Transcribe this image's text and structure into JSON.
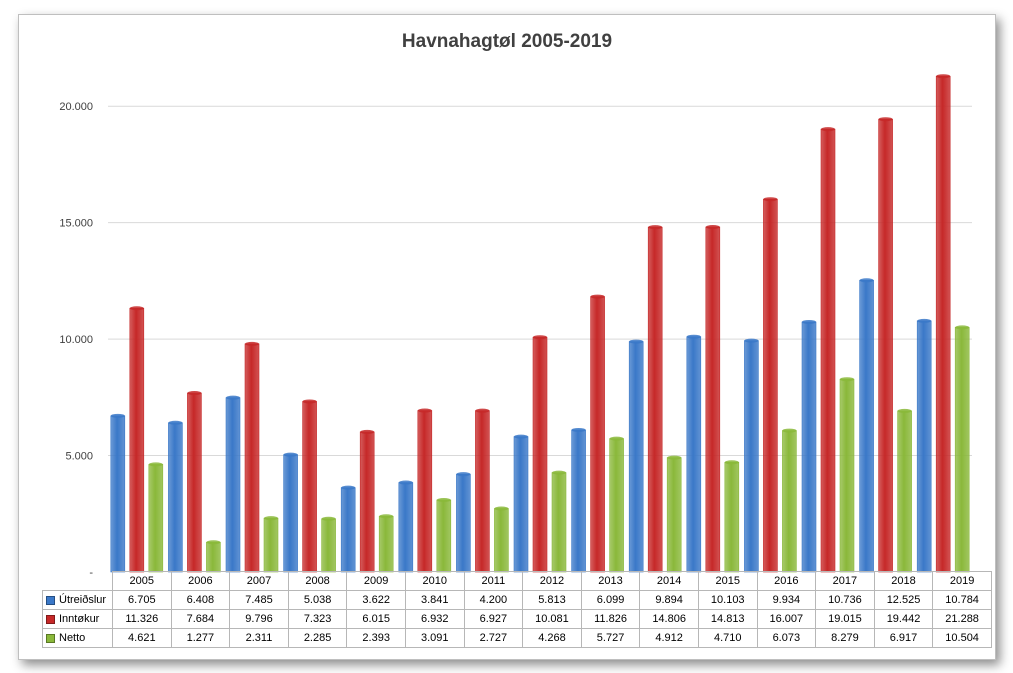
{
  "chart_data": {
    "type": "bar",
    "title": "Havnahagtøl 2005-2019",
    "categories": [
      "2005",
      "2006",
      "2007",
      "2008",
      "2009",
      "2010",
      "2011",
      "2012",
      "2013",
      "2014",
      "2015",
      "2016",
      "2017",
      "2018",
      "2019"
    ],
    "series": [
      {
        "name": "Útreiðslur",
        "color": "#3a78c8",
        "values": [
          6705,
          6408,
          7485,
          5038,
          3622,
          3841,
          4200,
          5813,
          6099,
          9894,
          10103,
          9934,
          10736,
          12525,
          10784
        ],
        "labels": [
          "6.705",
          "6.408",
          "7.485",
          "5.038",
          "3.622",
          "3.841",
          "4.200",
          "5.813",
          "6.099",
          "9.894",
          "10.103",
          "9.934",
          "10.736",
          "12.525",
          "10.784"
        ]
      },
      {
        "name": "Inntøkur",
        "color": "#c62828",
        "values": [
          11326,
          7684,
          9796,
          7323,
          6015,
          6932,
          6927,
          10081,
          11826,
          14806,
          14813,
          16007,
          19015,
          19442,
          21288
        ],
        "labels": [
          "11.326",
          "7.684",
          "9.796",
          "7.323",
          "6.015",
          "6.932",
          "6.927",
          "10.081",
          "11.826",
          "14.806",
          "14.813",
          "16.007",
          "19.015",
          "19.442",
          "21.288"
        ]
      },
      {
        "name": "Netto",
        "color": "#8ab83a",
        "values": [
          4621,
          1277,
          2311,
          2285,
          2393,
          3091,
          2727,
          4268,
          5727,
          4912,
          4710,
          6073,
          8279,
          6917,
          10504
        ],
        "labels": [
          "4.621",
          "1.277",
          "2.311",
          "2.285",
          "2.393",
          "3.091",
          "2.727",
          "4.268",
          "5.727",
          "4.912",
          "4.710",
          "6.073",
          "8.279",
          "6.917",
          "10.504"
        ]
      }
    ],
    "y_ticks": [
      0,
      5000,
      10000,
      15000,
      20000
    ],
    "y_tick_labels": [
      "-",
      "5.000",
      "10.000",
      "15.000",
      "20.000"
    ],
    "ylim": [
      0,
      22500
    ],
    "grid": true,
    "legend": "data-table"
  }
}
